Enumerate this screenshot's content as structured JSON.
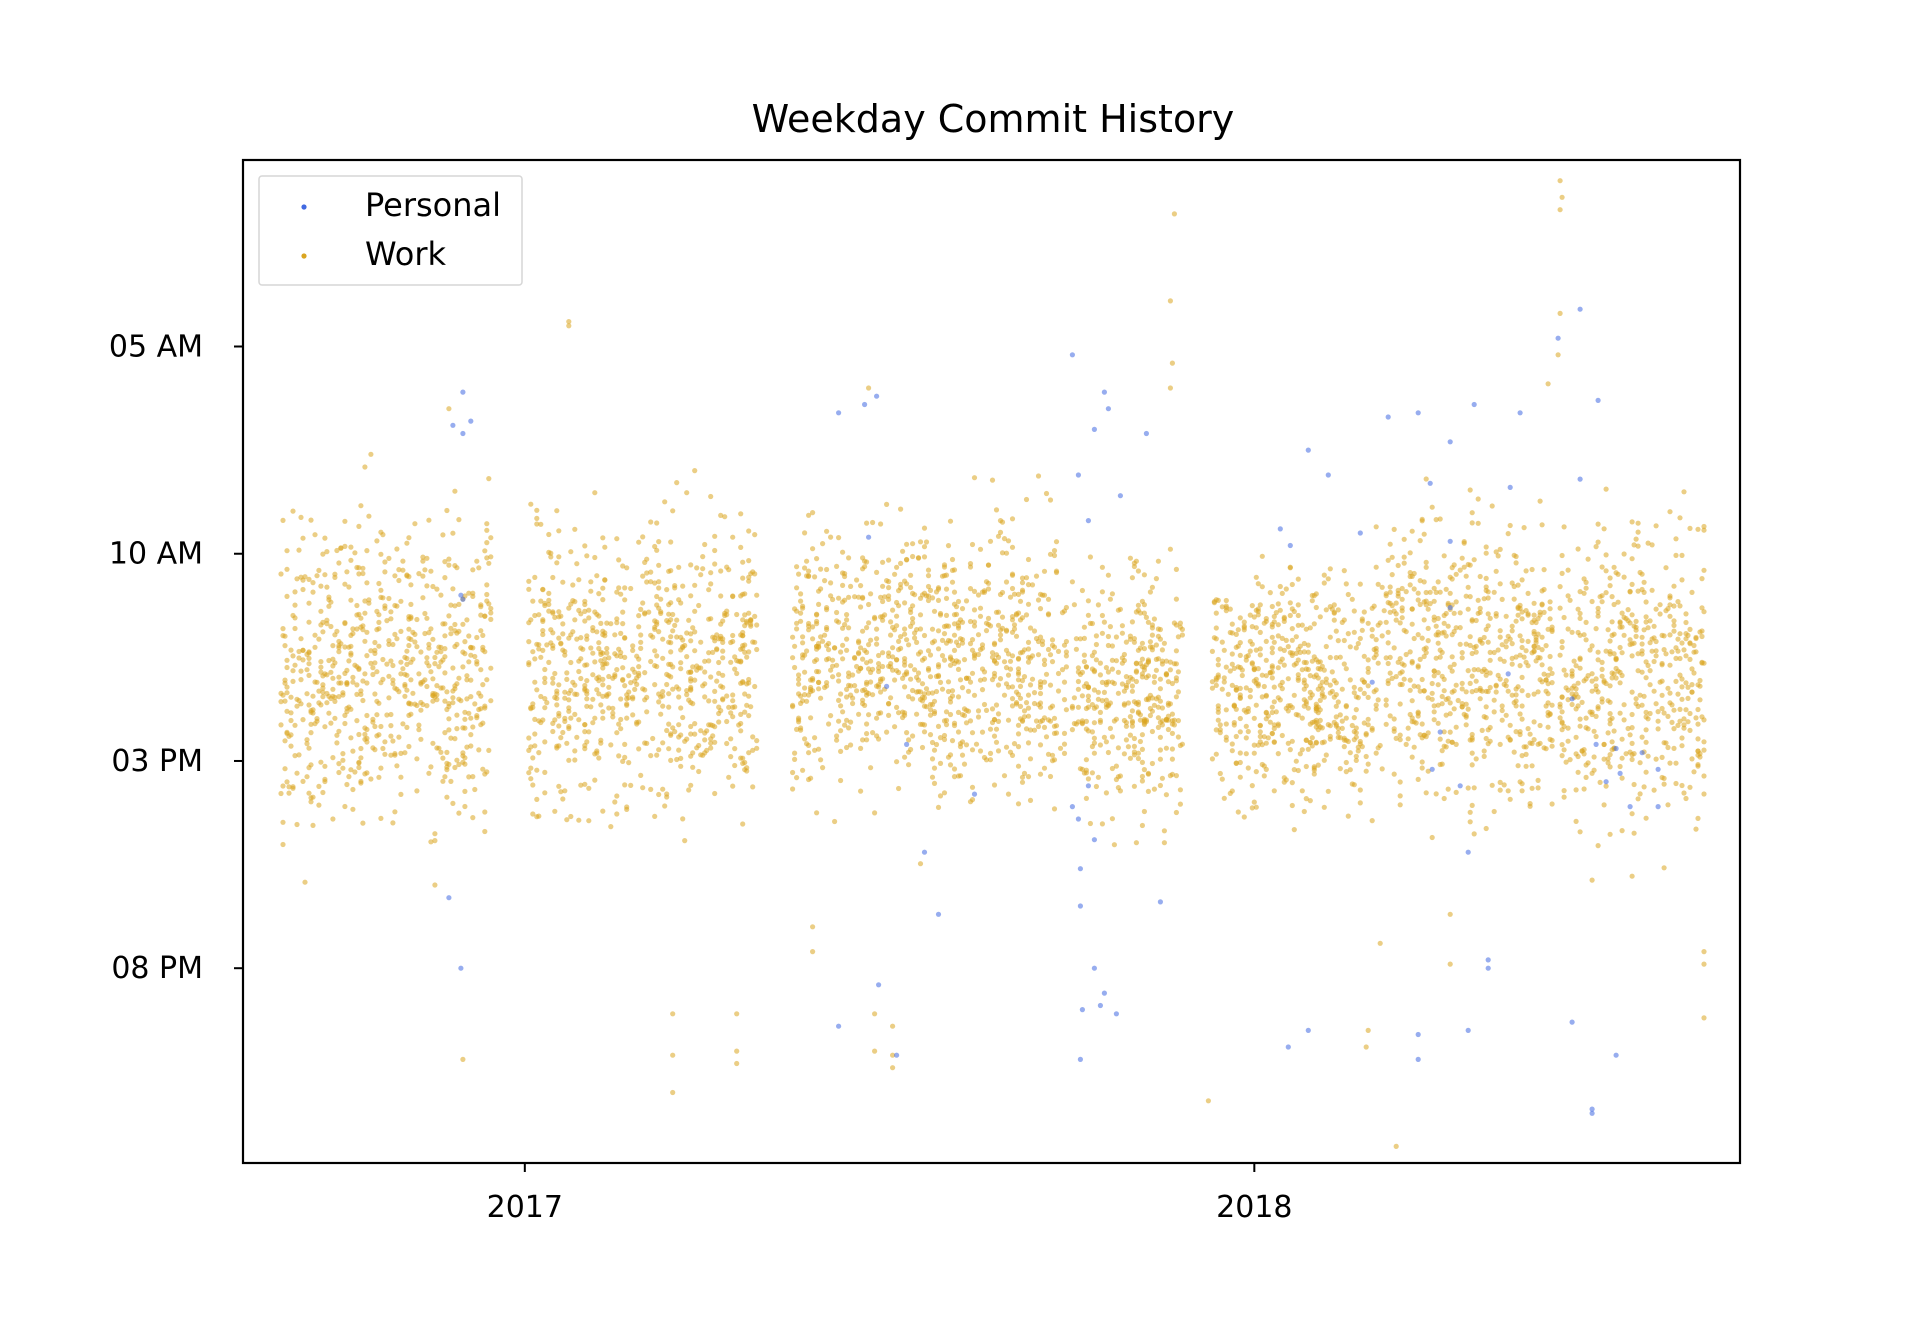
{
  "chart_data": {
    "type": "scatter",
    "title": "Weekday Commit History",
    "xlabel": "",
    "ylabel": "",
    "x_axis": {
      "kind": "date",
      "range": [
        "2016-08-13",
        "2018-09-01"
      ],
      "ticks": [
        "2017",
        "2018"
      ],
      "tick_dates": [
        "2017-01-01",
        "2018-01-01"
      ]
    },
    "y_axis": {
      "kind": "time of day",
      "inverted": true,
      "range_hours": [
        0.5,
        24.7
      ],
      "ticks": [
        "05 AM",
        "10 AM",
        "03 PM",
        "08 PM"
      ],
      "tick_hours": [
        5,
        10,
        15,
        20
      ]
    },
    "grid": false,
    "legend": {
      "placement": "top-left",
      "entries": [
        "Personal",
        "Work"
      ]
    },
    "colors": {
      "Personal": "#4169e1",
      "Work": "#daa520"
    },
    "series": [
      {
        "name": "Personal",
        "color": "#4169e1",
        "points": [
          {
            "x": "2016-11-26",
            "y": 6.9
          },
          {
            "x": "2016-12-01",
            "y": 6.1
          },
          {
            "x": "2016-12-01",
            "y": 7.1
          },
          {
            "x": "2016-12-05",
            "y": 6.8
          },
          {
            "x": "2016-11-30",
            "y": 11.0
          },
          {
            "x": "2016-12-01",
            "y": 11.1
          },
          {
            "x": "2016-11-24",
            "y": 18.3
          },
          {
            "x": "2016-11-30",
            "y": 20.0
          },
          {
            "x": "2017-06-07",
            "y": 6.6
          },
          {
            "x": "2017-06-20",
            "y": 6.4
          },
          {
            "x": "2017-06-26",
            "y": 6.2
          },
          {
            "x": "2017-06-07",
            "y": 21.4
          },
          {
            "x": "2017-06-27",
            "y": 20.4
          },
          {
            "x": "2017-07-06",
            "y": 22.1
          },
          {
            "x": "2017-07-01",
            "y": 13.2
          },
          {
            "x": "2017-07-11",
            "y": 14.6
          },
          {
            "x": "2017-07-20",
            "y": 17.2
          },
          {
            "x": "2017-06-22",
            "y": 9.6
          },
          {
            "x": "2017-07-27",
            "y": 18.7
          },
          {
            "x": "2017-08-14",
            "y": 15.8
          },
          {
            "x": "2017-10-02",
            "y": 5.2
          },
          {
            "x": "2017-10-13",
            "y": 7.0
          },
          {
            "x": "2017-10-20",
            "y": 6.5
          },
          {
            "x": "2017-10-05",
            "y": 8.1
          },
          {
            "x": "2017-10-10",
            "y": 9.2
          },
          {
            "x": "2017-10-26",
            "y": 8.6
          },
          {
            "x": "2017-11-08",
            "y": 7.1
          },
          {
            "x": "2017-10-18",
            "y": 6.1
          },
          {
            "x": "2017-10-02",
            "y": 16.1
          },
          {
            "x": "2017-10-05",
            "y": 16.4
          },
          {
            "x": "2017-10-10",
            "y": 15.6
          },
          {
            "x": "2017-10-06",
            "y": 17.6
          },
          {
            "x": "2017-10-13",
            "y": 16.9
          },
          {
            "x": "2017-10-06",
            "y": 18.5
          },
          {
            "x": "2017-10-13",
            "y": 20.0
          },
          {
            "x": "2017-10-18",
            "y": 20.6
          },
          {
            "x": "2017-10-16",
            "y": 20.9
          },
          {
            "x": "2017-10-07",
            "y": 21.0
          },
          {
            "x": "2017-10-24",
            "y": 21.1
          },
          {
            "x": "2017-10-06",
            "y": 22.2
          },
          {
            "x": "2017-11-15",
            "y": 18.4
          },
          {
            "x": "2018-01-14",
            "y": 9.4
          },
          {
            "x": "2018-01-19",
            "y": 9.8
          },
          {
            "x": "2018-01-28",
            "y": 7.5
          },
          {
            "x": "2018-02-07",
            "y": 8.1
          },
          {
            "x": "2018-02-23",
            "y": 9.5
          },
          {
            "x": "2018-03-09",
            "y": 6.7
          },
          {
            "x": "2018-03-24",
            "y": 6.6
          },
          {
            "x": "2018-03-30",
            "y": 8.3
          },
          {
            "x": "2018-04-09",
            "y": 7.3
          },
          {
            "x": "2018-04-21",
            "y": 6.4
          },
          {
            "x": "2018-05-09",
            "y": 8.4
          },
          {
            "x": "2018-05-14",
            "y": 6.6
          },
          {
            "x": "2018-01-28",
            "y": 21.5
          },
          {
            "x": "2018-01-18",
            "y": 21.9
          },
          {
            "x": "2018-03-24",
            "y": 21.6
          },
          {
            "x": "2018-03-24",
            "y": 22.2
          },
          {
            "x": "2018-04-28",
            "y": 20.0
          },
          {
            "x": "2018-04-28",
            "y": 19.8
          },
          {
            "x": "2018-04-18",
            "y": 21.5
          },
          {
            "x": "2018-04-09",
            "y": 9.7
          },
          {
            "x": "2018-04-09",
            "y": 11.3
          },
          {
            "x": "2018-04-04",
            "y": 14.3
          },
          {
            "x": "2018-04-14",
            "y": 15.6
          },
          {
            "x": "2018-04-18",
            "y": 17.2
          },
          {
            "x": "2018-03-31",
            "y": 15.2
          },
          {
            "x": "2018-06-02",
            "y": 4.8
          },
          {
            "x": "2018-06-13",
            "y": 4.1
          },
          {
            "x": "2018-06-22",
            "y": 6.3
          },
          {
            "x": "2018-06-13",
            "y": 8.2
          },
          {
            "x": "2018-06-09",
            "y": 13.5
          },
          {
            "x": "2018-06-21",
            "y": 14.6
          },
          {
            "x": "2018-07-01",
            "y": 14.7
          },
          {
            "x": "2018-07-03",
            "y": 15.3
          },
          {
            "x": "2018-06-09",
            "y": 21.3
          },
          {
            "x": "2018-07-01",
            "y": 22.1
          },
          {
            "x": "2018-06-19",
            "y": 23.4
          },
          {
            "x": "2018-06-19",
            "y": 23.5
          },
          {
            "x": "2018-07-08",
            "y": 16.1
          },
          {
            "x": "2018-07-14",
            "y": 14.8
          },
          {
            "x": "2018-07-22",
            "y": 15.2
          },
          {
            "x": "2018-07-22",
            "y": 16.1
          },
          {
            "x": "2018-06-26",
            "y": 15.5
          },
          {
            "x": "2018-03-01",
            "y": 13.1
          },
          {
            "x": "2018-05-08",
            "y": 12.9
          }
        ]
      },
      {
        "name": "Work",
        "color": "#daa520",
        "points": [
          {
            "x": "2016-12-01",
            "y": 22.2
          },
          {
            "x": "2017-03-16",
            "y": 21.1
          },
          {
            "x": "2017-03-16",
            "y": 22.1
          },
          {
            "x": "2017-03-16",
            "y": 23.0
          },
          {
            "x": "2017-04-17",
            "y": 21.1
          },
          {
            "x": "2017-04-17",
            "y": 22.0
          },
          {
            "x": "2017-04-17",
            "y": 22.3
          },
          {
            "x": "2017-05-25",
            "y": 19.0
          },
          {
            "x": "2017-05-25",
            "y": 19.6
          },
          {
            "x": "2017-06-25",
            "y": 21.1
          },
          {
            "x": "2017-06-25",
            "y": 22.0
          },
          {
            "x": "2017-07-04",
            "y": 21.4
          },
          {
            "x": "2017-07-04",
            "y": 22.1
          },
          {
            "x": "2017-07-04",
            "y": 22.4
          },
          {
            "x": "2017-01-23",
            "y": 4.4
          },
          {
            "x": "2017-01-23",
            "y": 4.5
          },
          {
            "x": "2017-06-22",
            "y": 6.0
          },
          {
            "x": "2016-11-24",
            "y": 6.5
          },
          {
            "x": "2017-11-22",
            "y": 1.8
          },
          {
            "x": "2017-11-20",
            "y": 3.9
          },
          {
            "x": "2017-11-21",
            "y": 5.4
          },
          {
            "x": "2017-11-20",
            "y": 6.0
          },
          {
            "x": "2018-06-03",
            "y": 1.0
          },
          {
            "x": "2018-06-04",
            "y": 1.4
          },
          {
            "x": "2018-06-03",
            "y": 1.7
          },
          {
            "x": "2018-06-03",
            "y": 4.2
          },
          {
            "x": "2018-06-02",
            "y": 5.2
          },
          {
            "x": "2018-05-28",
            "y": 5.9
          },
          {
            "x": "2018-03-13",
            "y": 24.3
          },
          {
            "x": "2017-12-09",
            "y": 23.2
          },
          {
            "x": "2018-04-09",
            "y": 18.7
          },
          {
            "x": "2018-04-09",
            "y": 19.9
          },
          {
            "x": "2018-03-05",
            "y": 19.4
          },
          {
            "x": "2018-02-27",
            "y": 21.5
          },
          {
            "x": "2018-02-26",
            "y": 21.9
          },
          {
            "x": "2018-08-14",
            "y": 19.6
          },
          {
            "x": "2018-08-14",
            "y": 19.9
          },
          {
            "x": "2018-08-14",
            "y": 21.2
          }
        ],
        "density_bands": [
          {
            "from": "2016-09-01",
            "to": "2016-12-16",
            "y_range": [
              7.5,
              18.0
            ]
          },
          {
            "from": "2017-01-03",
            "to": "2017-04-28",
            "y_range": [
              8.0,
              17.5
            ]
          },
          {
            "from": "2017-05-15",
            "to": "2017-09-30",
            "y_range": [
              8.0,
              17.0
            ]
          },
          {
            "from": "2017-10-02",
            "to": "2017-11-27",
            "y_range": [
              9.0,
              17.5
            ]
          },
          {
            "from": "2017-12-11",
            "to": "2018-02-28",
            "y_range": [
              9.5,
              17.0
            ]
          },
          {
            "from": "2018-03-01",
            "to": "2018-05-31",
            "y_range": [
              8.0,
              17.5
            ]
          },
          {
            "from": "2018-06-03",
            "to": "2018-08-15",
            "y_range": [
              8.0,
              18.0
            ]
          }
        ]
      }
    ]
  }
}
